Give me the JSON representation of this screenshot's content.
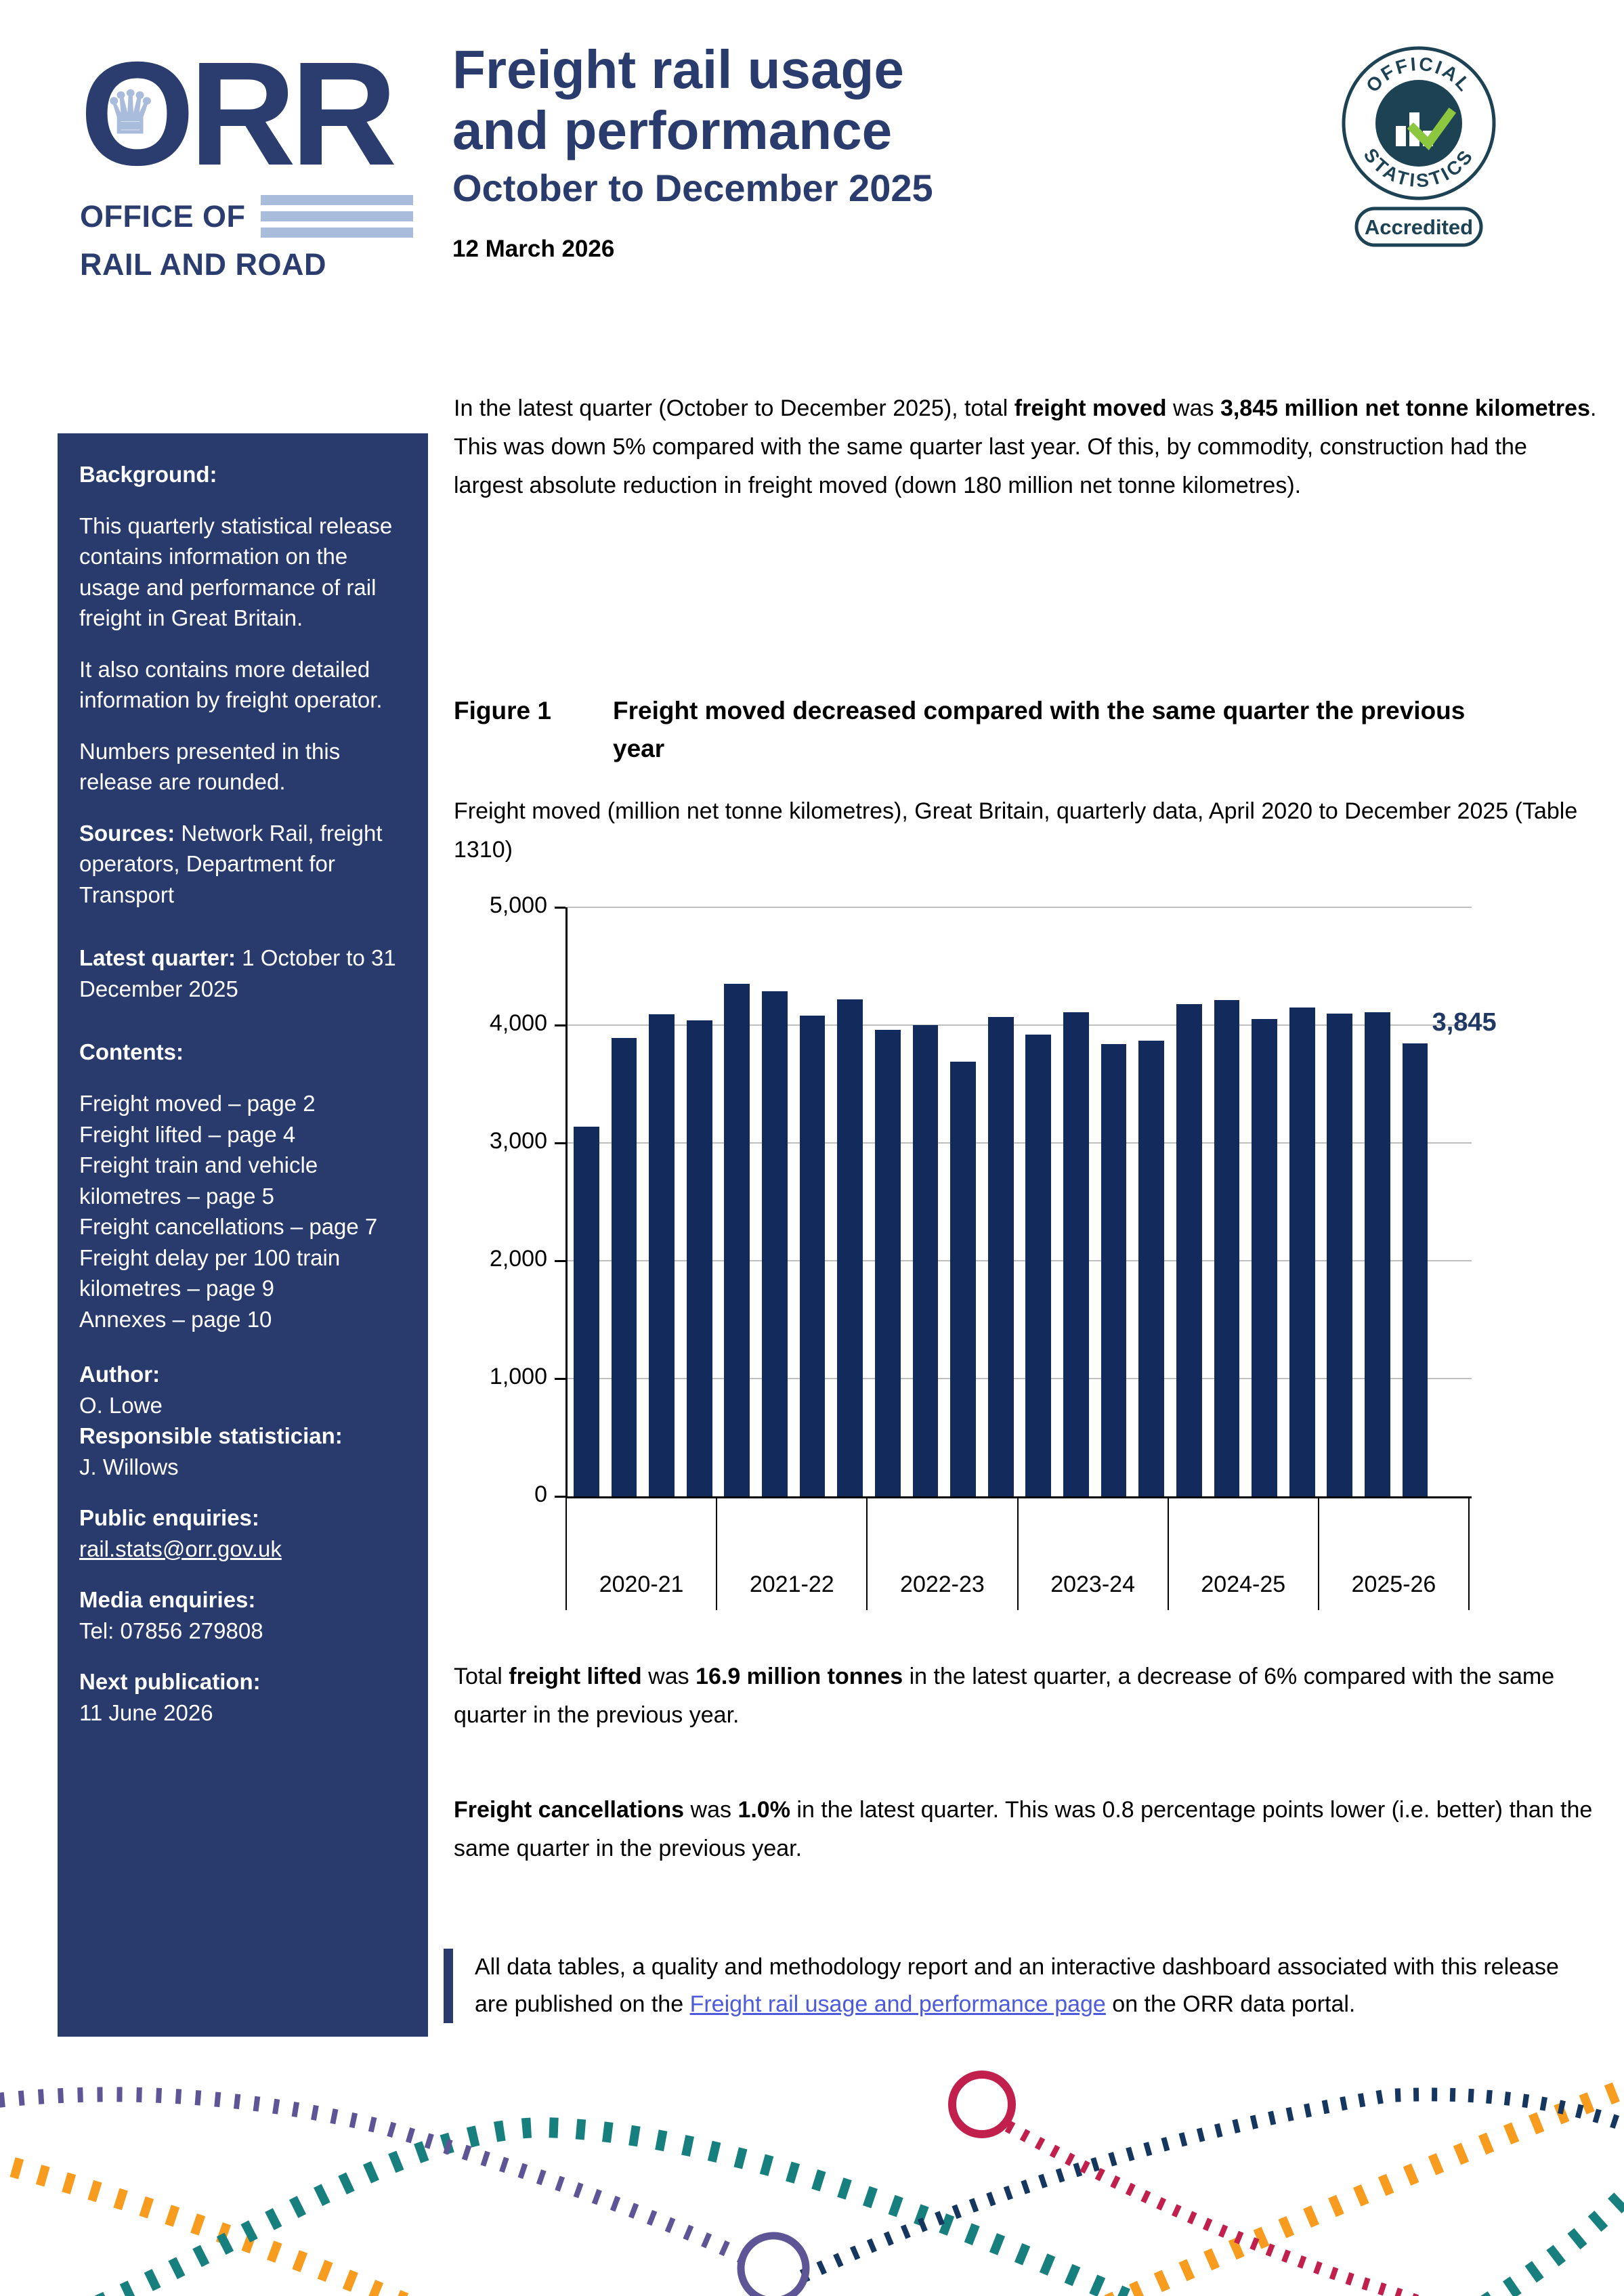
{
  "header": {
    "logo_text": "RR",
    "logo_crown": "♛",
    "logo_office": "OFFICE OF",
    "logo_rail": "RAIL AND ROAD",
    "title_line1": "Freight rail usage",
    "title_line2": "and performance",
    "subtitle": "October to December 2025",
    "release_date": "12 March 2026",
    "badge": {
      "arc_top": "OFFICIAL",
      "arc_bottom": "STATISTICS",
      "pill": "Accredited"
    }
  },
  "sidebar": {
    "background_label": "Background:",
    "para1": "This quarterly statistical release contains information on the usage and performance of rail freight in Great Britain.",
    "para2": "It also contains more detailed information by freight operator.",
    "para3": "Numbers presented in this release are rounded.",
    "sources_label": "Sources:",
    "sources_text": " Network Rail, freight operators, Department for Transport",
    "latest_quarter_label": "Latest quarter:",
    "latest_quarter_text": " 1 October to 31 December 2025",
    "contents_label": "Contents:",
    "contents_items": [
      "Freight moved – page 2",
      "Freight lifted – page 4",
      "Freight train and vehicle kilometres – page 5",
      "Freight cancellations – page 7",
      "Freight delay per 100 train kilometres – page 9",
      "Annexes – page 10"
    ],
    "author_label": "Author:",
    "author_name": "O. Lowe",
    "statistician_label": "Responsible statistician:",
    "statistician_name": "J. Willows",
    "public_enquiries_label": "Public enquiries:",
    "public_enquiries_link": "rail.stats@orr.gov.uk",
    "media_enquiries_label": "Media enquiries:",
    "media_enquiries_text": "Tel: 07856 279808",
    "next_publication_label": "Next publication:",
    "next_publication_text": "11 June 2026"
  },
  "main": {
    "intro": {
      "s1": "In the latest quarter (October to December 2025), total ",
      "b1": "freight moved",
      "s2": " was ",
      "b2": "3,845 million net tonne kilometres",
      "s3": ". This was down 5% compared with the same quarter last year. Of this, by commodity, construction had the largest absolute reduction in freight moved (down 180 million net tonne kilometres)."
    },
    "figure_label": "Figure 1",
    "figure_title": "Freight moved decreased compared with the same quarter the previous year",
    "chart_caption": "Freight moved (million net tonne kilometres), Great Britain, quarterly data, April 2020 to December 2025 (Table 1310)",
    "para_lifted": {
      "s1": "Total ",
      "b1": "freight lifted",
      "s2": " was ",
      "b2": "16.9 million tonnes",
      "s3": " in the latest quarter, a decrease of 6% compared with the same quarter in the previous year."
    },
    "para_cancellations": {
      "b1": "Freight cancellations",
      "s1": " was ",
      "b2": "1.0%",
      "s2": " in the latest quarter. This was 0.8 percentage points lower (i.e. better) than the same quarter in the previous year."
    },
    "callout": {
      "s1": "All data tables, a quality and methodology report and an interactive dashboard associated with this release are published on the ",
      "link": "Freight rail usage and performance page",
      "s2": " on the ORR data portal."
    }
  },
  "chart_data": {
    "type": "bar",
    "title": "Freight moved decreased compared with the same quarter the previous year",
    "ylabel": "Freight moved (million net tonne kilometres)",
    "xlabel": "",
    "ylim": [
      0,
      5000
    ],
    "ytick_step": 1000,
    "grid": true,
    "legend": false,
    "bar_color": "#122A5C",
    "year_groups": [
      "2020-21",
      "2021-22",
      "2022-23",
      "2023-24",
      "2024-25",
      "2025-26"
    ],
    "slots_per_group": 4,
    "x": [
      "2020-21 Q1",
      "2020-21 Q2",
      "2020-21 Q3",
      "2020-21 Q4",
      "2021-22 Q1",
      "2021-22 Q2",
      "2021-22 Q3",
      "2021-22 Q4",
      "2022-23 Q1",
      "2022-23 Q2",
      "2022-23 Q3",
      "2022-23 Q4",
      "2023-24 Q1",
      "2023-24 Q2",
      "2023-24 Q3",
      "2023-24 Q4",
      "2024-25 Q1",
      "2024-25 Q2",
      "2024-25 Q3",
      "2024-25 Q4",
      "2025-26 Q1",
      "2025-26 Q2",
      "2025-26 Q3"
    ],
    "values": [
      3140,
      3890,
      4090,
      4040,
      4350,
      4290,
      4080,
      4220,
      3960,
      4000,
      3690,
      4070,
      3920,
      4110,
      3840,
      3870,
      4180,
      4210,
      4050,
      4150,
      4100,
      4110,
      3845
    ],
    "last_value_label": "3,845"
  },
  "colors": {
    "navy": "#2A3B6E",
    "sidebar_bg": "#293A6D",
    "bar": "#122A5C",
    "data_label": "#1F3864",
    "link_blue": "#4D5BDB",
    "logo_lightblue": "#A9BCDC",
    "badge_navy": "#1D4254",
    "check_green": "#8DC63F",
    "gridline_gray": "#BFBFBF",
    "footer_purple": "#5E5596",
    "footer_teal": "#17807E",
    "footer_orange": "#F79C1E",
    "footer_navy": "#14365F",
    "footer_crimson": "#C0204B"
  }
}
